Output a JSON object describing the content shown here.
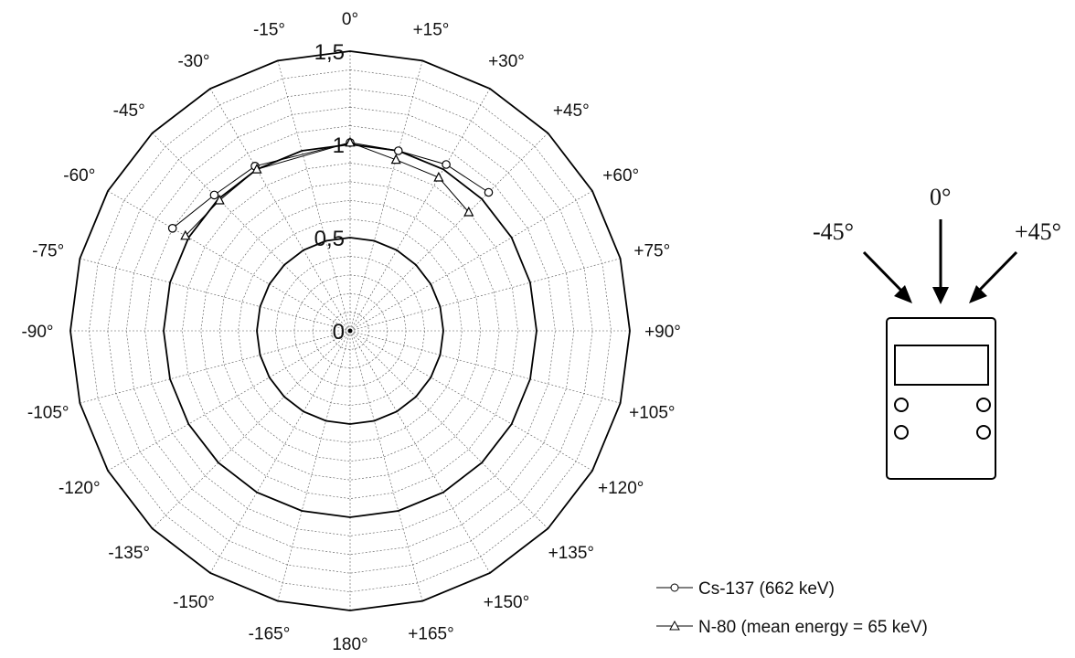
{
  "chart_data": {
    "type": "polar-line",
    "radial_ticks": [
      "0",
      "0,5",
      "1",
      "1,5"
    ],
    "radial_tick_values": [
      0,
      0.5,
      1,
      1.5
    ],
    "rlim": [
      0,
      1.5
    ],
    "angle_labels": [
      {
        "angle": 0,
        "text": "0°"
      },
      {
        "angle": 15,
        "text": "+15°"
      },
      {
        "angle": 30,
        "text": "+30°"
      },
      {
        "angle": 45,
        "text": "+45°"
      },
      {
        "angle": 60,
        "text": "+60°"
      },
      {
        "angle": 75,
        "text": "+75°"
      },
      {
        "angle": 90,
        "text": "+90°"
      },
      {
        "angle": 105,
        "text": "+105°"
      },
      {
        "angle": 120,
        "text": "+120°"
      },
      {
        "angle": 135,
        "text": "+135°"
      },
      {
        "angle": 150,
        "text": "+150°"
      },
      {
        "angle": 165,
        "text": "+165°"
      },
      {
        "angle": 180,
        "text": "180°"
      },
      {
        "angle": -165,
        "text": "-165°"
      },
      {
        "angle": -150,
        "text": "-150°"
      },
      {
        "angle": -135,
        "text": "-135°"
      },
      {
        "angle": -120,
        "text": "-120°"
      },
      {
        "angle": -105,
        "text": "-105°"
      },
      {
        "angle": -90,
        "text": "-90°"
      },
      {
        "angle": -75,
        "text": "-75°"
      },
      {
        "angle": -60,
        "text": "-60°"
      },
      {
        "angle": -45,
        "text": "-45°"
      },
      {
        "angle": -30,
        "text": "-30°"
      },
      {
        "angle": -15,
        "text": "-15°"
      }
    ],
    "grid": true,
    "legend_position": "bottom-right",
    "series": [
      {
        "name": "Cs-137 (662 keV)",
        "marker": "circle",
        "points": [
          {
            "angle": -60,
            "value": 1.1
          },
          {
            "angle": -45,
            "value": 1.03
          },
          {
            "angle": -30,
            "value": 1.02
          },
          {
            "angle": 0,
            "value": 1.01
          },
          {
            "angle": 15,
            "value": 1.0
          },
          {
            "angle": 30,
            "value": 1.03
          },
          {
            "angle": 45,
            "value": 1.05
          }
        ]
      },
      {
        "name": "N-80 (mean energy = 65 keV)",
        "marker": "triangle",
        "points": [
          {
            "angle": -60,
            "value": 1.02
          },
          {
            "angle": -45,
            "value": 0.99
          },
          {
            "angle": -30,
            "value": 1.0
          },
          {
            "angle": 0,
            "value": 1.01
          },
          {
            "angle": 15,
            "value": 0.95
          },
          {
            "angle": 30,
            "value": 0.95
          },
          {
            "angle": 45,
            "value": 0.9
          }
        ]
      }
    ]
  },
  "diagram": {
    "labels": {
      "left": "-45°",
      "center": "0°",
      "right": "+45°"
    }
  }
}
